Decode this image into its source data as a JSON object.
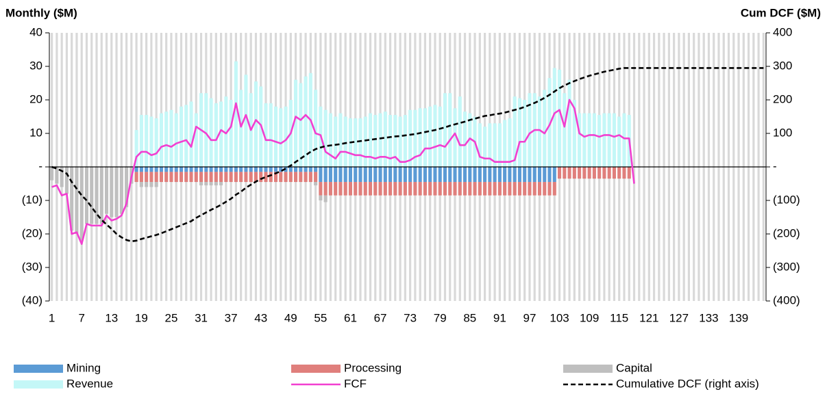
{
  "chart_data": {
    "type": "bar",
    "y_title": "Monthly ($M)",
    "y2_title": "Cum DCF ($M)",
    "categories": [
      "1",
      null,
      null,
      null,
      null,
      null,
      "7",
      null,
      null,
      null,
      null,
      null,
      "13",
      null,
      null,
      null,
      null,
      null,
      "19",
      null,
      null,
      null,
      null,
      null,
      "25",
      null,
      null,
      null,
      null,
      null,
      "31",
      null,
      null,
      null,
      null,
      null,
      "37",
      null,
      null,
      null,
      null,
      null,
      "43",
      null,
      null,
      null,
      null,
      null,
      "49",
      null,
      null,
      null,
      null,
      null,
      "55",
      null,
      null,
      null,
      null,
      null,
      "61",
      null,
      null,
      null,
      null,
      null,
      "67",
      null,
      null,
      null,
      null,
      null,
      "73",
      null,
      null,
      null,
      null,
      null,
      "79",
      null,
      null,
      null,
      null,
      null,
      "85",
      null,
      null,
      null,
      null,
      null,
      "91",
      null,
      null,
      null,
      null,
      null,
      "97",
      null,
      null,
      null,
      null,
      null,
      "103",
      null,
      null,
      null,
      null,
      null,
      "109",
      null,
      null,
      null,
      null,
      null,
      "115",
      null,
      null,
      null,
      null,
      null,
      "121",
      null,
      null,
      null,
      null,
      null,
      "127",
      null,
      null,
      null,
      null,
      null,
      "133",
      null,
      null,
      null,
      null,
      null,
      "139",
      null,
      null,
      null,
      null,
      null
    ],
    "ylim": [
      -40,
      40
    ],
    "yticks": [
      40,
      30,
      20,
      10,
      {
        "value": 0,
        "label": "-"
      },
      {
        "value": -10,
        "label": "(10)"
      },
      {
        "value": -20,
        "label": "(20)"
      },
      {
        "value": -30,
        "label": "(30)"
      },
      {
        "value": -40,
        "label": "(40)"
      }
    ],
    "y2lim": [
      -400,
      400
    ],
    "y2ticks": [
      400,
      300,
      200,
      100,
      {
        "value": 0,
        "label": "-"
      },
      {
        "value": -100,
        "label": "(100)"
      },
      {
        "value": -200,
        "label": "(200)"
      },
      {
        "value": -300,
        "label": "(300)"
      },
      {
        "value": -400,
        "label": "(400)"
      }
    ],
    "grid": true,
    "grid_color": "#d9d9d9",
    "series": [
      {
        "name": "Mining",
        "type": "bar",
        "color": "#5b9bd5",
        "values": [
          null,
          null,
          null,
          null,
          null,
          null,
          null,
          null,
          null,
          null,
          null,
          null,
          null,
          null,
          null,
          null,
          null,
          -1.5,
          -1.5,
          -1.5,
          -1.5,
          -1.5,
          -1.5,
          -1.5,
          -1.5,
          -1.5,
          -1.5,
          -1.5,
          -1.5,
          -1.5,
          -1.5,
          -1.5,
          -1.5,
          -1.5,
          -1.5,
          -1.5,
          -1.5,
          -1.5,
          -1.5,
          -1.5,
          -1.5,
          -1.5,
          -1.5,
          -1.5,
          -1.5,
          -1.5,
          -1.5,
          -1.5,
          -1.5,
          -1.5,
          -1.5,
          -1.5,
          -1.5,
          -1.5,
          -4.5,
          -4.5,
          -4.5,
          -4.5,
          -4.5,
          -4.5,
          -4.5,
          -4.5,
          -4.5,
          -4.5,
          -4.5,
          -4.5,
          -4.5,
          -4.5,
          -4.5,
          -4.5,
          -4.5,
          -4.5,
          -4.5,
          -4.5,
          -4.5,
          -4.5,
          -4.5,
          -4.5,
          -4.5,
          -4.5,
          -4.5,
          -4.5,
          -4.5,
          -4.5,
          -4.5,
          -4.5,
          -4.5,
          -4.5,
          -4.5,
          -4.5,
          -4.5,
          -4.5,
          -4.5,
          -4.5,
          -4.5,
          -4.5,
          -4.5,
          -4.5,
          -4.5,
          -4.5,
          -4.5,
          -4.5,
          null,
          null,
          null,
          null,
          null,
          null,
          null,
          null,
          null,
          null,
          null,
          null,
          null,
          null,
          null,
          null,
          null,
          null,
          null,
          null,
          null,
          null,
          null,
          null,
          null,
          null,
          null,
          null,
          null,
          null,
          null,
          null,
          null,
          null,
          null,
          null,
          null,
          null,
          null,
          null,
          null,
          null
        ]
      },
      {
        "name": "Processing",
        "type": "bar",
        "color": "#e07f7c",
        "values": [
          null,
          null,
          null,
          null,
          null,
          null,
          null,
          null,
          null,
          null,
          null,
          null,
          null,
          null,
          null,
          null,
          null,
          -3,
          -3,
          -3,
          -3,
          -3,
          -3,
          -3,
          -3,
          -3,
          -3,
          -3,
          -3,
          -3,
          -3,
          -3,
          -3,
          -3,
          -3,
          -3,
          -3,
          -3,
          -3,
          -3,
          -3,
          -3,
          -3,
          -3,
          -3,
          -3,
          -3,
          -3,
          -3,
          -3,
          -3,
          -3,
          -3,
          -3,
          -4,
          -4,
          -4,
          -4,
          -4,
          -4,
          -4,
          -4,
          -4,
          -4,
          -4,
          -4,
          -4,
          -4,
          -4,
          -4,
          -4,
          -4,
          -4,
          -4,
          -4,
          -4,
          -4,
          -4,
          -4,
          -4,
          -4,
          -4,
          -4,
          -4,
          -4,
          -4,
          -4,
          -4,
          -4,
          -4,
          -4,
          -4,
          -4,
          -4,
          -4,
          -4,
          -4,
          -4,
          -4,
          -4,
          -4,
          -4,
          -3.5,
          -3.5,
          -3.5,
          -3.5,
          -3.5,
          -3.5,
          -3.5,
          -3.5,
          -3.5,
          -3.5,
          -3.5,
          -3.5,
          -3.5,
          -3.5,
          -3.5,
          null,
          null,
          null,
          null,
          null,
          null,
          null,
          null,
          null,
          null,
          null,
          null,
          null,
          null,
          null,
          null,
          null,
          null,
          null,
          null,
          null,
          null,
          null,
          null,
          null,
          null,
          null
        ]
      },
      {
        "name": "Capital",
        "type": "bar",
        "color": "#bfbfbf",
        "values": [
          -4,
          -5,
          -6,
          -8,
          -19,
          -20,
          -22,
          -17,
          -17,
          -17,
          -17,
          -14,
          -15,
          -15,
          -14,
          -12,
          -5,
          null,
          -1.5,
          -1.5,
          -1.5,
          -1.5,
          null,
          null,
          null,
          null,
          null,
          null,
          null,
          null,
          -1,
          -1,
          -1,
          -1,
          -1,
          null,
          null,
          null,
          null,
          null,
          null,
          null,
          null,
          null,
          null,
          null,
          null,
          null,
          null,
          null,
          null,
          null,
          null,
          -1,
          -1.5,
          -2,
          null,
          null,
          null,
          null,
          null,
          null,
          null,
          null,
          null,
          null,
          null,
          null,
          null,
          null,
          null,
          null,
          null,
          null,
          null,
          null,
          null,
          null,
          null,
          null,
          null,
          null,
          null,
          null,
          null,
          null,
          null,
          null,
          null,
          null,
          null,
          null,
          null,
          null,
          null,
          null,
          null,
          null,
          null,
          null,
          null,
          null,
          null,
          null,
          null,
          null,
          null,
          null,
          null,
          null,
          null,
          null,
          null,
          null,
          null,
          null,
          null,
          null,
          null,
          null,
          null,
          null,
          null,
          null,
          null,
          null,
          null,
          null,
          null,
          null,
          null,
          null,
          null,
          null,
          null,
          null,
          null,
          null,
          null,
          null,
          null,
          null,
          null,
          null
        ]
      },
      {
        "name": "Revenue",
        "type": "bar",
        "color": "#c4f7f7",
        "values": [
          null,
          null,
          null,
          null,
          null,
          null,
          null,
          null,
          null,
          null,
          null,
          null,
          null,
          null,
          null,
          null,
          null,
          11,
          15.5,
          15.5,
          15,
          14.5,
          16,
          16.5,
          17,
          16,
          18,
          18.5,
          19.5,
          16,
          22,
          22,
          20.5,
          19,
          19.5,
          21,
          20,
          31.5,
          23,
          27.5,
          22,
          25.5,
          24,
          19,
          19,
          18,
          17.5,
          18,
          20,
          26,
          25,
          27,
          28,
          23,
          18,
          17,
          16,
          15,
          16,
          15,
          14.5,
          14.5,
          14.5,
          15,
          16,
          15.5,
          16,
          16.5,
          15.5,
          15.5,
          15,
          15.5,
          17,
          17,
          17.5,
          17.5,
          18,
          18.5,
          18,
          22,
          22,
          17.5,
          21,
          16.5,
          16,
          15,
          13,
          12,
          13,
          13,
          13,
          14,
          14.5,
          21,
          20.5,
          20,
          22,
          22,
          21,
          23,
          26.5,
          29.5,
          29,
          22,
          26,
          20,
          16,
          16,
          16,
          16,
          15.5,
          16,
          16,
          16,
          15,
          16,
          15.5,
          null,
          null,
          null,
          null,
          null,
          null,
          null,
          null,
          null,
          null,
          null,
          null,
          null,
          null,
          null,
          null,
          null,
          null,
          null,
          null,
          null,
          null,
          null,
          null,
          null,
          null,
          null
        ]
      },
      {
        "name": "FCF",
        "type": "line",
        "color": "#f23fd0",
        "values": [
          -6,
          -5.5,
          -8.5,
          -8,
          -20,
          -19.5,
          -23,
          -17,
          -17.5,
          -17.5,
          -17.5,
          -14.5,
          -16,
          -15.5,
          -14.5,
          -11,
          -3,
          3,
          4.5,
          4.5,
          3.5,
          4,
          6,
          6.5,
          6,
          7,
          7.5,
          8,
          6,
          12,
          11,
          10,
          8,
          8,
          11,
          10,
          12,
          19,
          12,
          15.5,
          11,
          14,
          12.5,
          8,
          8,
          7.5,
          7,
          8,
          10,
          15,
          14,
          15.5,
          14,
          10,
          9.5,
          4.5,
          3.5,
          2.5,
          4.5,
          4.5,
          4,
          3.5,
          3.5,
          3,
          3,
          2.5,
          3,
          3,
          2.5,
          3,
          1.5,
          1.5,
          2,
          3,
          3.5,
          5.5,
          5.5,
          6,
          6.5,
          6,
          8,
          10,
          6.5,
          6.5,
          8.5,
          7.5,
          3,
          2.5,
          2.5,
          1.5,
          1.5,
          1.5,
          1.5,
          2,
          7.5,
          7.5,
          10,
          11,
          11,
          10,
          12.5,
          16,
          17,
          12,
          20,
          17.5,
          10,
          9,
          9.5,
          9.5,
          9,
          9.5,
          9.5,
          9,
          9.5,
          8.5,
          8.5,
          -5,
          null,
          null,
          null,
          null,
          null,
          null,
          null,
          null,
          null,
          null,
          null,
          null,
          null,
          null,
          null,
          null,
          null,
          null,
          null,
          null,
          null,
          null,
          null,
          null,
          null,
          null
        ]
      },
      {
        "name": "Cumulative DCF (right axis)",
        "type": "line",
        "axis": "y2",
        "dashed": true,
        "color": "#000000",
        "values": [
          0,
          -5,
          -12,
          -20,
          -45,
          -65,
          -85,
          -100,
          -120,
          -140,
          -158,
          -172,
          -185,
          -200,
          -210,
          -218,
          -222,
          -220,
          -215,
          -211,
          -207,
          -203,
          -198,
          -192,
          -186,
          -180,
          -174,
          -168,
          -162,
          -152,
          -144,
          -136,
          -128,
          -121,
          -113,
          -104,
          -95,
          -83,
          -74,
          -62,
          -53,
          -44,
          -36,
          -30,
          -25,
          -19,
          -13,
          -5,
          4,
          15,
          25,
          35,
          45,
          53,
          58,
          62,
          64,
          66,
          68,
          71,
          73,
          75,
          77,
          79,
          81,
          83,
          85,
          87,
          89,
          91,
          92,
          94,
          96,
          98,
          101,
          104,
          107,
          110,
          114,
          118,
          123,
          127,
          131,
          135,
          140,
          144,
          148,
          152,
          154,
          157,
          159,
          162,
          166,
          170,
          174,
          179,
          185,
          191,
          198,
          206,
          215,
          225,
          235,
          243,
          250,
          256,
          262,
          267,
          272,
          276,
          280,
          284,
          287,
          290,
          293,
          295,
          295,
          295,
          295,
          295,
          295,
          295,
          295,
          295,
          295,
          295,
          295,
          295,
          295,
          295,
          295,
          295,
          295,
          295,
          295,
          295,
          295,
          295,
          295,
          295,
          295,
          295,
          295,
          295
        ]
      }
    ]
  }
}
